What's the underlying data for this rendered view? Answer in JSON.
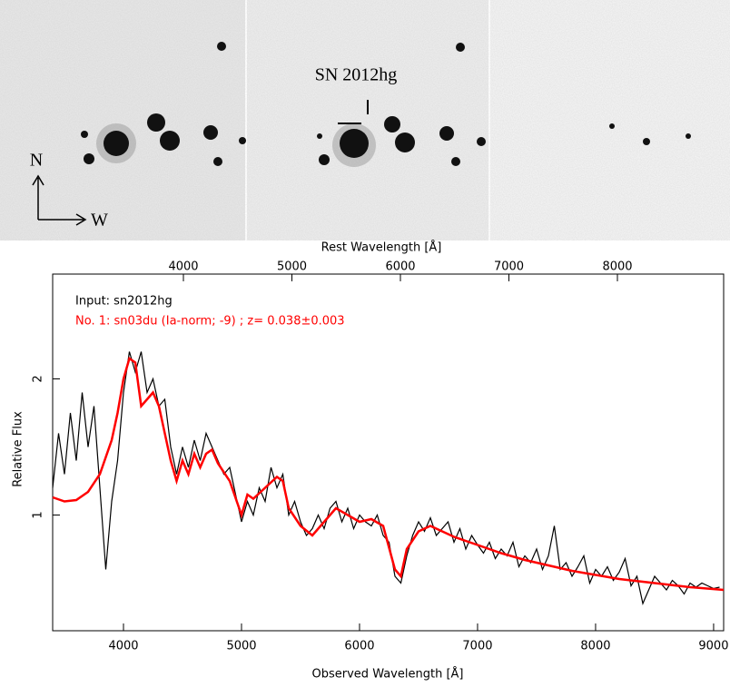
{
  "image_labels": {
    "supernova": "SN 2012hg",
    "north": "N",
    "west": "W"
  },
  "chart_data": {
    "type": "line",
    "x_label": "Observed Wavelength [Å]",
    "y_label": "Relative Flux",
    "x2_label": "Rest Wavelength [Å]",
    "xlim": [
      3400,
      9085
    ],
    "xticks": [
      4000,
      5000,
      6000,
      7000,
      8000,
      9000
    ],
    "x2lim": [
      2795,
      8979
    ],
    "x2ticks": [
      4000,
      5000,
      6000,
      7000,
      8000
    ],
    "ylim": [
      0.15,
      2.77
    ],
    "yticks": [
      1,
      2
    ],
    "annotations": [
      {
        "text": "Input:  sn2012hg",
        "color": "#000000"
      },
      {
        "text": "No. 1: sn03du (Ia-norm;  -9) ; z= 0.038±0.003",
        "color": "#ff0000"
      }
    ],
    "series": [
      {
        "color": "#000000",
        "x": [
          3400,
          3450,
          3500,
          3550,
          3600,
          3650,
          3700,
          3750,
          3800,
          3850,
          3900,
          3950,
          4000,
          4050,
          4100,
          4150,
          4200,
          4250,
          4300,
          4350,
          4400,
          4450,
          4500,
          4550,
          4600,
          4650,
          4700,
          4750,
          4800,
          4850,
          4900,
          4950,
          5000,
          5050,
          5100,
          5150,
          5200,
          5250,
          5300,
          5350,
          5400,
          5450,
          5500,
          5550,
          5600,
          5650,
          5700,
          5750,
          5800,
          5850,
          5900,
          5950,
          6000,
          6050,
          6100,
          6150,
          6200,
          6250,
          6300,
          6350,
          6400,
          6450,
          6500,
          6550,
          6600,
          6650,
          6700,
          6750,
          6800,
          6850,
          6900,
          6950,
          7000,
          7050,
          7100,
          7150,
          7200,
          7250,
          7300,
          7350,
          7400,
          7450,
          7500,
          7550,
          7600,
          7650,
          7700,
          7750,
          7800,
          7850,
          7900,
          7950,
          8000,
          8050,
          8100,
          8150,
          8200,
          8250,
          8300,
          8350,
          8400,
          8450,
          8500,
          8550,
          8600,
          8650,
          8700,
          8750,
          8800,
          8850,
          8900,
          8950,
          9000,
          9050
        ],
        "values": [
          1.2,
          1.6,
          1.3,
          1.75,
          1.4,
          1.9,
          1.5,
          1.8,
          1.2,
          0.6,
          1.1,
          1.4,
          1.9,
          2.2,
          2.05,
          2.2,
          1.9,
          2.0,
          1.8,
          1.85,
          1.5,
          1.3,
          1.5,
          1.35,
          1.55,
          1.4,
          1.6,
          1.5,
          1.4,
          1.3,
          1.35,
          1.15,
          0.95,
          1.1,
          1.0,
          1.2,
          1.1,
          1.35,
          1.2,
          1.3,
          1.0,
          1.1,
          0.95,
          0.85,
          0.9,
          1.0,
          0.9,
          1.05,
          1.1,
          0.95,
          1.05,
          0.9,
          1.0,
          0.95,
          0.92,
          1.0,
          0.85,
          0.8,
          0.55,
          0.5,
          0.7,
          0.85,
          0.95,
          0.88,
          0.98,
          0.85,
          0.9,
          0.95,
          0.8,
          0.9,
          0.75,
          0.85,
          0.78,
          0.72,
          0.8,
          0.68,
          0.75,
          0.7,
          0.8,
          0.62,
          0.7,
          0.65,
          0.75,
          0.6,
          0.7,
          0.92,
          0.6,
          0.65,
          0.55,
          0.62,
          0.7,
          0.5,
          0.6,
          0.55,
          0.62,
          0.52,
          0.58,
          0.68,
          0.48,
          0.55,
          0.35,
          0.45,
          0.55,
          0.5,
          0.45,
          0.52,
          0.48,
          0.42,
          0.5,
          0.47,
          0.5,
          0.48,
          0.46,
          0.47
        ]
      },
      {
        "color": "#ff0000",
        "x": [
          3400,
          3500,
          3600,
          3700,
          3800,
          3900,
          3950,
          4000,
          4050,
          4100,
          4150,
          4200,
          4250,
          4300,
          4400,
          4450,
          4500,
          4550,
          4600,
          4650,
          4700,
          4750,
          4800,
          4900,
          5000,
          5050,
          5100,
          5200,
          5300,
          5350,
          5400,
          5500,
          5600,
          5700,
          5800,
          5900,
          6000,
          6100,
          6200,
          6300,
          6350,
          6400,
          6500,
          6600,
          6700,
          6800,
          7000,
          7200,
          7400,
          7600,
          7800,
          8000,
          8200,
          8400,
          8600,
          8800,
          9085
        ],
        "values": [
          1.13,
          1.1,
          1.11,
          1.17,
          1.3,
          1.55,
          1.75,
          2.0,
          2.15,
          2.12,
          1.8,
          1.85,
          1.9,
          1.8,
          1.4,
          1.25,
          1.4,
          1.3,
          1.45,
          1.35,
          1.45,
          1.48,
          1.38,
          1.25,
          1.0,
          1.15,
          1.12,
          1.2,
          1.28,
          1.25,
          1.05,
          0.92,
          0.85,
          0.95,
          1.05,
          1.0,
          0.95,
          0.97,
          0.92,
          0.6,
          0.55,
          0.75,
          0.88,
          0.92,
          0.88,
          0.84,
          0.78,
          0.72,
          0.67,
          0.63,
          0.59,
          0.56,
          0.53,
          0.51,
          0.49,
          0.47,
          0.45
        ]
      }
    ]
  }
}
